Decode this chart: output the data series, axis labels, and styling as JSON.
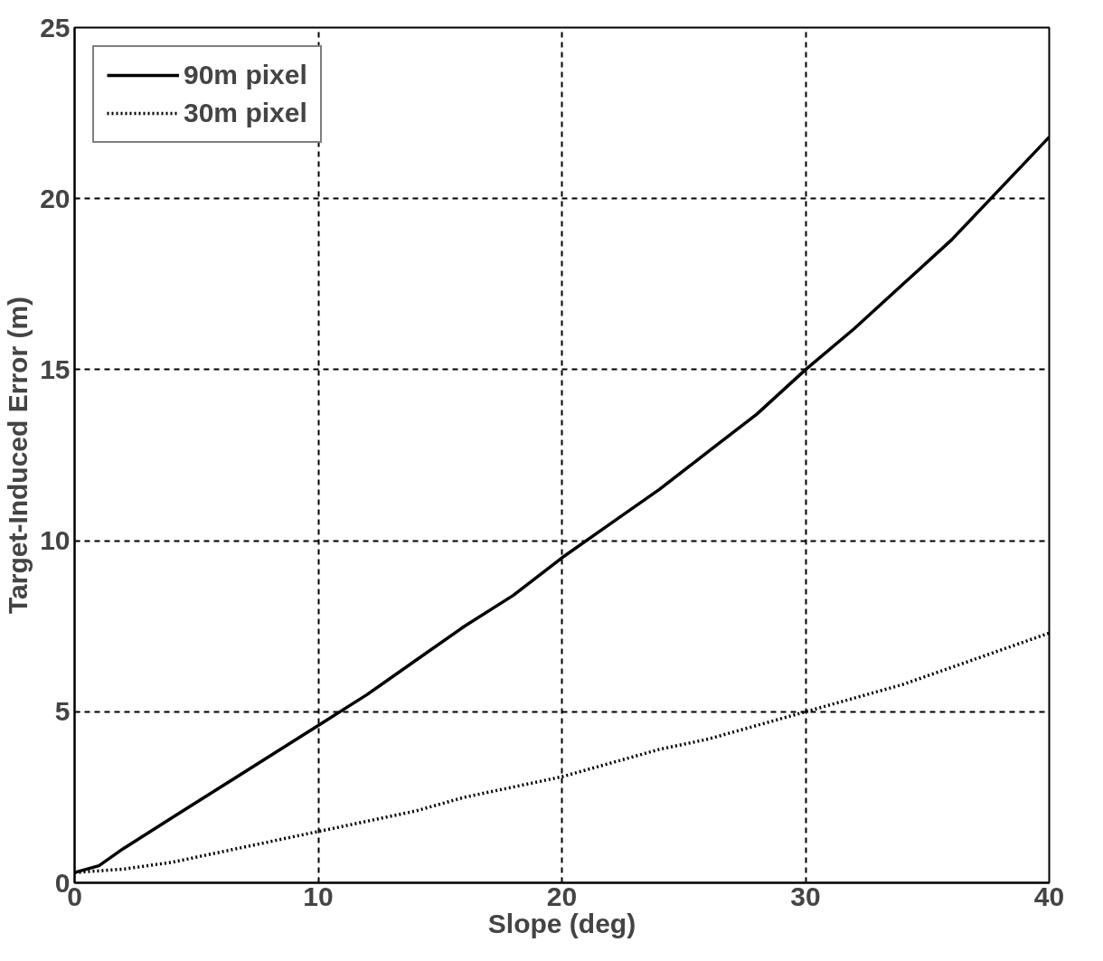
{
  "chart_data": {
    "type": "line",
    "xlabel": "Slope (deg)",
    "ylabel": "Target-Induced Error (m)",
    "xlim": [
      0,
      40
    ],
    "ylim": [
      0,
      25
    ],
    "xticks": [
      0,
      10,
      20,
      30,
      40
    ],
    "yticks": [
      0,
      5,
      10,
      15,
      20,
      25
    ],
    "grid": true,
    "legend": "top left",
    "series": [
      {
        "name": "90m pixel",
        "color": "#000000",
        "line_style": "solid",
        "x": [
          0,
          1,
          2,
          4,
          6,
          8,
          10,
          12,
          14,
          16,
          18,
          20,
          22,
          24,
          26,
          28,
          30,
          32,
          34,
          36,
          38,
          40
        ],
        "values": [
          0.3,
          0.5,
          1.0,
          1.9,
          2.8,
          3.7,
          4.6,
          5.5,
          6.5,
          7.5,
          8.4,
          9.5,
          10.5,
          11.5,
          12.6,
          13.7,
          15.0,
          16.2,
          17.5,
          18.8,
          20.3,
          21.8
        ]
      },
      {
        "name": "30m pixel",
        "color": "#000000",
        "line_style": "dotted",
        "x": [
          0,
          2,
          4,
          6,
          8,
          10,
          12,
          14,
          16,
          18,
          20,
          22,
          24,
          26,
          28,
          30,
          32,
          34,
          36,
          38,
          40
        ],
        "values": [
          0.3,
          0.4,
          0.6,
          0.9,
          1.2,
          1.5,
          1.8,
          2.1,
          2.5,
          2.8,
          3.1,
          3.5,
          3.9,
          4.2,
          4.6,
          5.0,
          5.4,
          5.8,
          6.3,
          6.8,
          7.3
        ]
      }
    ]
  }
}
